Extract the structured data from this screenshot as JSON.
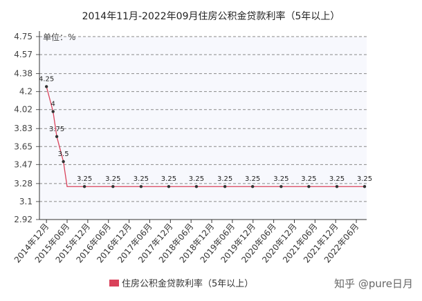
{
  "chart_data": {
    "type": "line",
    "title": "2014年11月-2022年09月住房公积金贷款利率（5年以上）",
    "y_unit_label": "单位：%",
    "x": [
      2014.92,
      2015.08,
      2015.17,
      2015.33,
      2015.42,
      2015.84,
      2016.53,
      2017.21,
      2017.88,
      2018.55,
      2019.24,
      2019.91,
      2020.6,
      2021.27,
      2021.95,
      2022.62
    ],
    "series": [
      {
        "name": "住房公积金贷款利率（5年以上）",
        "color": "#d9415a",
        "values": [
          4.25,
          4,
          3.75,
          3.5,
          3.25,
          3.25,
          3.25,
          3.25,
          3.25,
          3.25,
          3.25,
          3.25,
          3.25,
          3.25,
          3.25,
          3.25
        ],
        "value_labels": [
          "4.25",
          "4",
          "3.75",
          "3.5",
          null,
          "3.25",
          "3.25",
          "3.25",
          "3.25",
          "3.25",
          "3.25",
          "3.25",
          "3.25",
          "3.25",
          "3.25",
          "3.25"
        ]
      }
    ],
    "xlim": [
      2014.75,
      2022.67
    ],
    "xticks": [
      {
        "value": 2014.92,
        "label": "2014年12月"
      },
      {
        "value": 2015.42,
        "label": "2015年06月"
      },
      {
        "value": 2015.92,
        "label": "2015年12月"
      },
      {
        "value": 2016.42,
        "label": "2016年06月"
      },
      {
        "value": 2016.92,
        "label": "2016年12月"
      },
      {
        "value": 2017.42,
        "label": "2017年06月"
      },
      {
        "value": 2017.92,
        "label": "2017年12月"
      },
      {
        "value": 2018.42,
        "label": "2018年06月"
      },
      {
        "value": 2018.92,
        "label": "2018年12月"
      },
      {
        "value": 2019.42,
        "label": "2019年06月"
      },
      {
        "value": 2019.92,
        "label": "2019年12月"
      },
      {
        "value": 2020.42,
        "label": "2020年06月"
      },
      {
        "value": 2020.92,
        "label": "2020年12月"
      },
      {
        "value": 2021.42,
        "label": "2021年06月"
      },
      {
        "value": 2021.92,
        "label": "2021年12月"
      },
      {
        "value": 2022.42,
        "label": "2022年06月"
      }
    ],
    "ylim": [
      2.92,
      4.75
    ],
    "yticks": [
      2.92,
      3.1,
      3.28,
      3.47,
      3.65,
      3.83,
      4.02,
      4.2,
      4.38,
      4.57,
      4.75
    ],
    "grid": true,
    "legend": "bottom",
    "watermark": "知乎 @pure日月"
  }
}
